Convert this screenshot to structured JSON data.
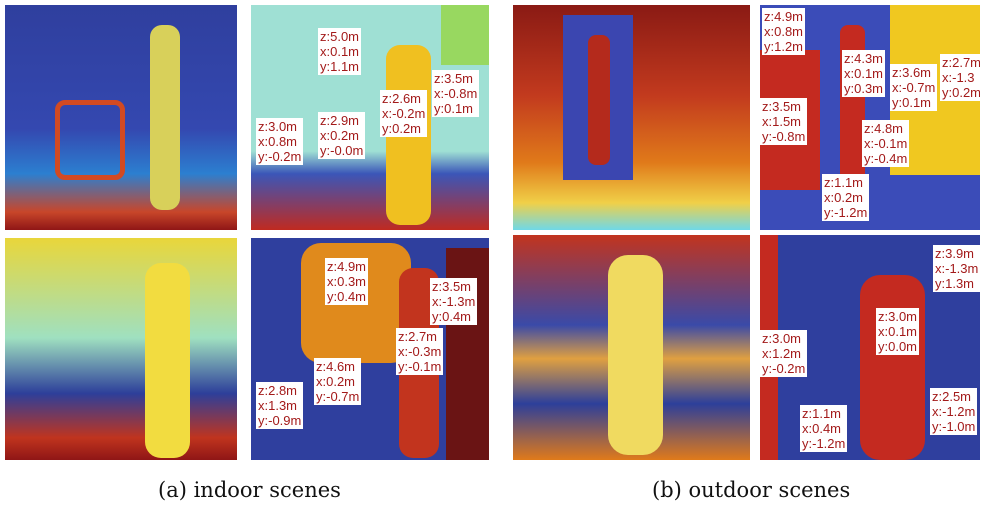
{
  "label_panels": [
    [
      [
        "z:5.0m",
        "x:0.1m",
        "y:1.1m"
      ],
      [
        "z:3.5m",
        "x:-0.8m",
        "y:0.1m"
      ],
      [
        "z:2.6m",
        "x:-0.2m",
        "y:0.2m"
      ],
      [
        "z:2.9m",
        "x:0.2m",
        "y:-0.0m"
      ],
      [
        "z:3.0m",
        "x:0.8m",
        "y:-0.2m"
      ]
    ],
    [
      [
        "z:4.9m",
        "x:0.3m",
        "y:0.4m"
      ],
      [
        "z:3.5m",
        "x:-1.3m",
        "y:0.4m"
      ],
      [
        "z:2.7m",
        "x:-0.3m",
        "y:-0.1m"
      ],
      [
        "z:4.6m",
        "x:0.2m",
        "y:-0.7m"
      ],
      [
        "z:2.8m",
        "x:1.3m",
        "y:-0.9m"
      ]
    ],
    [
      [
        "z:4.9m",
        "x:0.8m",
        "y:1.2m"
      ],
      [
        "z:4.3m",
        "x:0.1m",
        "y:0.3m"
      ],
      [
        "z:3.6m",
        "x:-0.7m",
        "y:0.1m"
      ],
      [
        "z:2.7m",
        "x:-1.3",
        "y:0.2m"
      ],
      [
        "z:3.5m",
        "x:1.5m",
        "y:-0.8m"
      ],
      [
        "z:4.8m",
        "x:-0.1m",
        "y:-0.4m"
      ],
      [
        "z:1.1m",
        "x:0.2m",
        "y:-1.2m"
      ]
    ],
    [
      [
        "z:3.9m",
        "x:-1.3m",
        "y:1.3m"
      ],
      [
        "z:3.0m",
        "x:0.1m",
        "y:0.0m"
      ],
      [
        "z:3.0m",
        "x:1.2m",
        "y:-0.2m"
      ],
      [
        "z:2.5m",
        "x:-1.2m",
        "y:-1.0m"
      ],
      [
        "z:1.1m",
        "x:0.4m",
        "y:-1.2m"
      ]
    ]
  ],
  "captions": [
    "(a) indoor scenes",
    "(b) outdoor scenes"
  ]
}
